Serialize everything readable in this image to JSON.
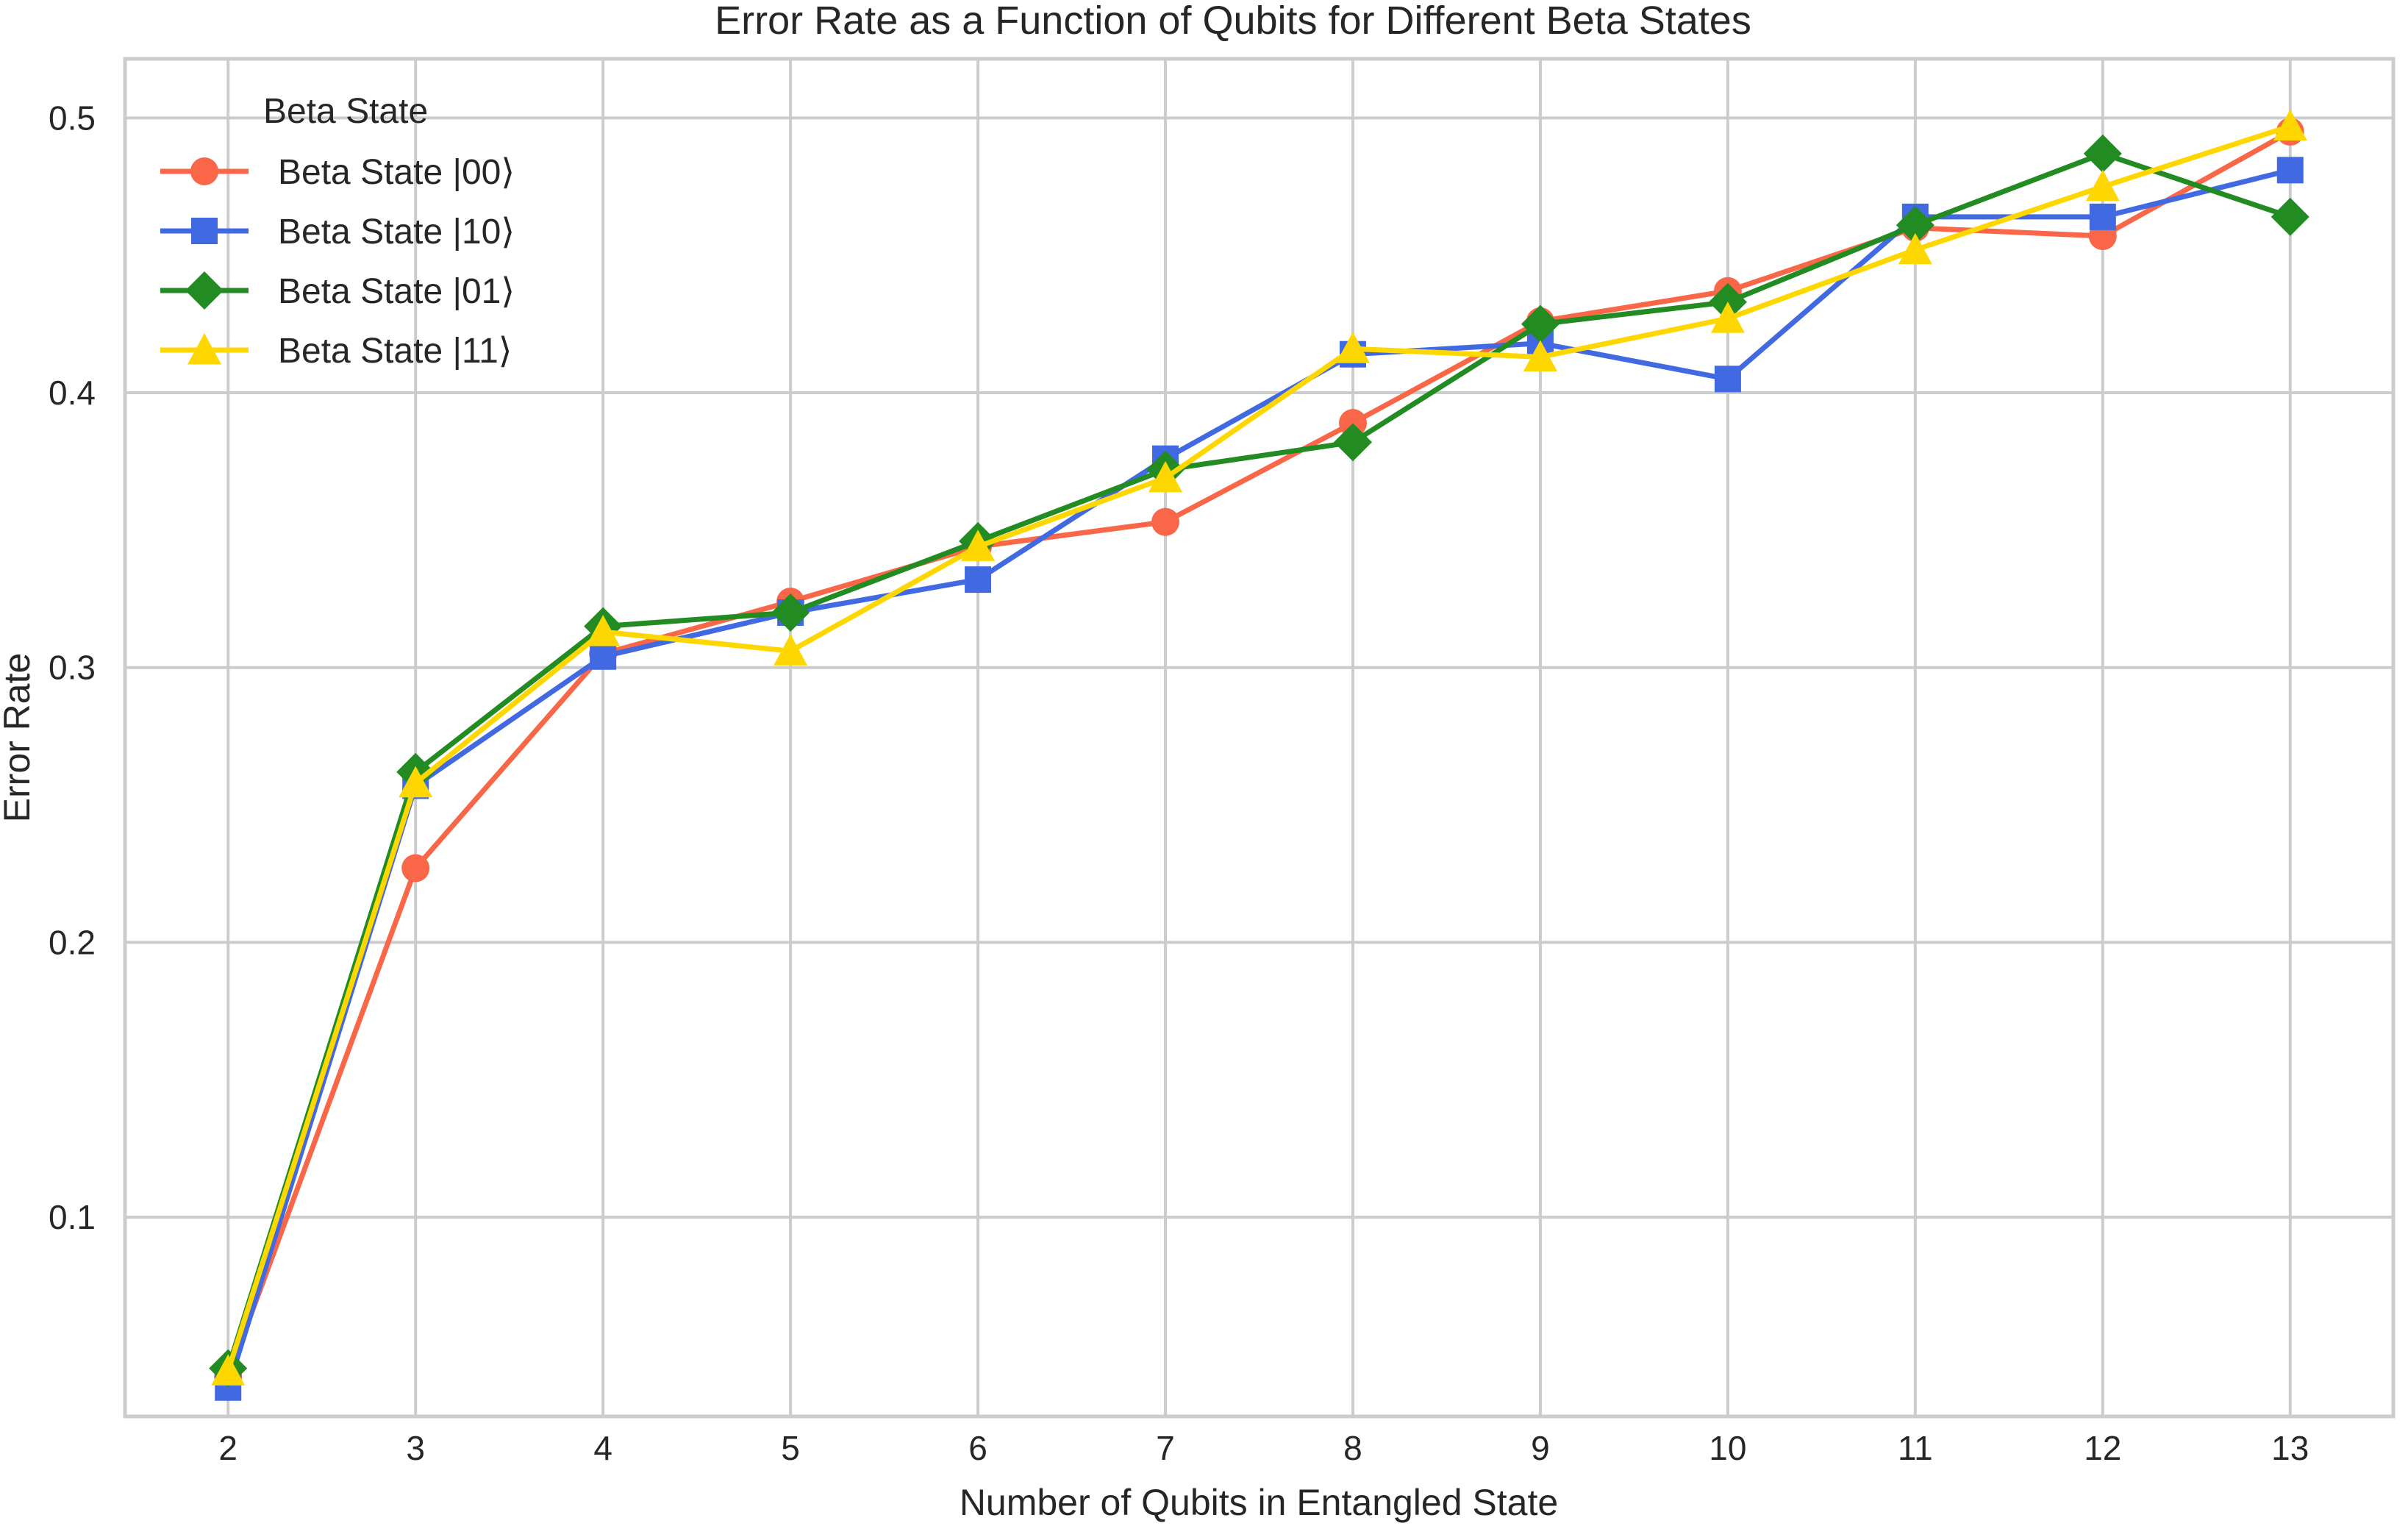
{
  "chart_data": {
    "type": "line",
    "title": "Error Rate as a Function of Qubits for Different Beta States",
    "xlabel": "Number of Qubits in Entangled State",
    "ylabel": "Error Rate",
    "x": [
      2,
      3,
      4,
      5,
      6,
      7,
      8,
      9,
      10,
      11,
      12,
      13
    ],
    "xticks": [
      "2",
      "3",
      "4",
      "5",
      "6",
      "7",
      "8",
      "9",
      "10",
      "11",
      "12",
      "13"
    ],
    "yticks": [
      "0.1",
      "0.2",
      "0.3",
      "0.4",
      "0.5"
    ],
    "xlim": [
      1.45,
      13.55
    ],
    "ylim": [
      0.0275,
      0.5215
    ],
    "grid": true,
    "legend": {
      "title": "Beta State",
      "placement": "top-left"
    },
    "series": [
      {
        "name": "Beta State |00⟩",
        "color": "#FA6648",
        "marker": "circle",
        "values": [
          0.042,
          0.227,
          0.305,
          0.324,
          0.344,
          0.353,
          0.389,
          0.426,
          0.437,
          0.46,
          0.457,
          0.495
        ]
      },
      {
        "name": "Beta State |10⟩",
        "color": "#4169E1",
        "marker": "square",
        "values": [
          0.038,
          0.257,
          0.304,
          0.32,
          0.332,
          0.376,
          0.414,
          0.418,
          0.405,
          0.464,
          0.464,
          0.481
        ]
      },
      {
        "name": "Beta State |01⟩",
        "color": "#228B22",
        "marker": "diamond",
        "values": [
          0.045,
          0.262,
          0.315,
          0.32,
          0.346,
          0.372,
          0.382,
          0.425,
          0.433,
          0.461,
          0.487,
          0.464
        ]
      },
      {
        "name": "Beta State |11⟩",
        "color": "#FFD700",
        "marker": "triangle",
        "values": [
          0.044,
          0.258,
          0.313,
          0.306,
          0.344,
          0.369,
          0.416,
          0.413,
          0.427,
          0.452,
          0.475,
          0.497
        ]
      }
    ]
  }
}
